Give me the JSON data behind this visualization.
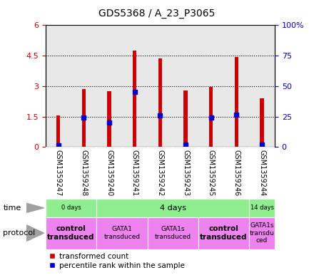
{
  "title": "GDS5368 / A_23_P3065",
  "samples": [
    "GSM1359247",
    "GSM1359248",
    "GSM1359240",
    "GSM1359241",
    "GSM1359242",
    "GSM1359243",
    "GSM1359245",
    "GSM1359246",
    "GSM1359244"
  ],
  "red_values": [
    1.55,
    2.85,
    2.75,
    4.75,
    4.35,
    2.8,
    2.95,
    4.45,
    2.4
  ],
  "blue_values": [
    0.08,
    1.45,
    1.2,
    2.7,
    1.55,
    0.12,
    1.45,
    1.6,
    0.1
  ],
  "ylim_left": [
    0,
    6
  ],
  "ylim_right": [
    0,
    100
  ],
  "yticks_left": [
    0,
    1.5,
    3,
    4.5,
    6
  ],
  "yticks_right": [
    0,
    25,
    50,
    75,
    100
  ],
  "ytick_labels_left": [
    "0",
    "1.5",
    "3",
    "4.5",
    "6"
  ],
  "ytick_labels_right": [
    "0",
    "25",
    "50",
    "75",
    "100%"
  ],
  "time_groups": [
    {
      "label": "0 days",
      "start": 0,
      "end": 2,
      "color": "#90EE90"
    },
    {
      "label": "4 days",
      "start": 2,
      "end": 8,
      "color": "#90EE90"
    },
    {
      "label": "14 days",
      "start": 8,
      "end": 9,
      "color": "#90EE90"
    }
  ],
  "protocol_groups": [
    {
      "label": "control\ntransduced",
      "start": 0,
      "end": 2,
      "color": "#EE82EE",
      "bold": true
    },
    {
      "label": "GATA1\ntransduced",
      "start": 2,
      "end": 4,
      "color": "#EE82EE",
      "bold": false
    },
    {
      "label": "GATA1s\ntransduced",
      "start": 4,
      "end": 6,
      "color": "#EE82EE",
      "bold": false
    },
    {
      "label": "control\ntransduced",
      "start": 6,
      "end": 8,
      "color": "#EE82EE",
      "bold": true
    },
    {
      "label": "GATA1s\ntransdu\nced",
      "start": 8,
      "end": 9,
      "color": "#EE82EE",
      "bold": false
    }
  ],
  "bar_color": "#CC0000",
  "dot_color": "#0000CC",
  "plot_bg": "#E8E8E8",
  "grid_color": "#000000",
  "label_color_left": "#CC0000",
  "label_color_right": "#0000CC",
  "sample_bg": "#C8C8C8",
  "bar_width": 0.15
}
